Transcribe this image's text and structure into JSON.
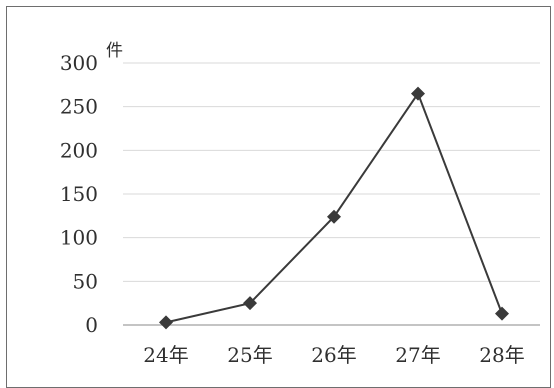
{
  "chart_data": {
    "type": "line",
    "categories": [
      "24年",
      "25年",
      "26年",
      "27年",
      "28年"
    ],
    "series": [
      {
        "values": [
          3,
          25,
          124,
          265,
          13
        ]
      }
    ],
    "title": "",
    "xlabel": "",
    "ylabel": "件",
    "ylim": [
      0,
      300
    ],
    "yticks": [
      "0",
      "50",
      "100",
      "150",
      "200",
      "250",
      "300"
    ],
    "grid": true,
    "legend": "none",
    "colors": {
      "line": "#3a3a3a",
      "marker": "#3a3a3a",
      "grid": "#d9d9d9",
      "axis": "#a0a0a0"
    }
  }
}
